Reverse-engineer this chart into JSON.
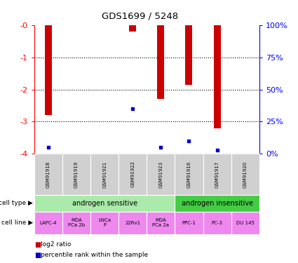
{
  "title": "GDS1699 / 5248",
  "samples": [
    "GSM91918",
    "GSM91919",
    "GSM91921",
    "GSM91922",
    "GSM91923",
    "GSM91916",
    "GSM91917",
    "GSM91920"
  ],
  "log2_ratio": [
    -2.8,
    0,
    0,
    -0.2,
    -2.3,
    -1.85,
    -3.2,
    0
  ],
  "percentile_rank_pct": [
    5,
    0,
    0,
    35,
    5,
    10,
    3,
    0
  ],
  "bar_color": "#cc0000",
  "dot_color": "#0000cc",
  "ylim_left": [
    -4,
    0
  ],
  "yticks_left": [
    0,
    -1,
    -2,
    -3,
    -4
  ],
  "ytick_labels_left": [
    "-0",
    "-1",
    "-2",
    "-3",
    "-4"
  ],
  "yticks_right": [
    0,
    25,
    50,
    75,
    100
  ],
  "ytick_labels_right": [
    "0%",
    "25%",
    "50%",
    "75%",
    "100%"
  ],
  "cell_type_sensitive": "androgen sensitive",
  "cell_type_insensitive": "androgen insensitive",
  "cell_lines": [
    "LAPC-4",
    "MDA\nPCa 2b",
    "LNCa\nP",
    "22Rv1",
    "MDA\nPCa 2a",
    "PPC-1",
    "PC-3",
    "DU 145"
  ],
  "sensitive_color": "#aaeaaa",
  "insensitive_color": "#44cc44",
  "cell_line_color": "#ee88ee",
  "sample_bg_color": "#d0d0d0",
  "n_sensitive": 5,
  "n_insensitive": 3,
  "legend_red": "log2 ratio",
  "legend_blue": "percentile rank within the sample",
  "bar_width": 0.25
}
